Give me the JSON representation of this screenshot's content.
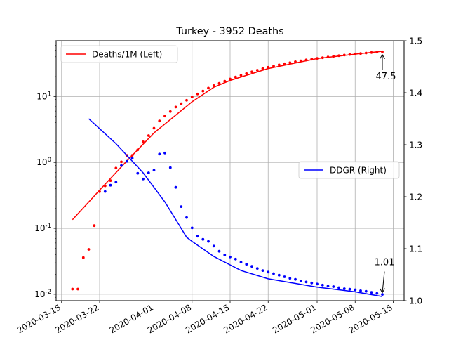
{
  "chart_data": {
    "type": "line",
    "title": "Turkey - 3952 Deaths",
    "x_dates": [
      "2020-03-15",
      "2020-03-22",
      "2020-04-01",
      "2020-04-08",
      "2020-04-15",
      "2020-04-22",
      "2020-05-01",
      "2020-05-08",
      "2020-05-15"
    ],
    "x_tick_labels": [
      "2020-03-15",
      "2020-03-22",
      "2020-04-01",
      "2020-04-08",
      "2020-04-15",
      "2020-04-22",
      "2020-05-01",
      "2020-05-08",
      "2020-05-15"
    ],
    "xlim": [
      "2020-03-14",
      "2020-05-17"
    ],
    "left_axis": {
      "scale": "log",
      "ylim": [
        0.008,
        70
      ],
      "tick_labels": [
        "10^-2",
        "10^-1",
        "10^0",
        "10^1"
      ],
      "tick_values": [
        0.01,
        0.1,
        1,
        10
      ]
    },
    "right_axis": {
      "scale": "linear",
      "ylim": [
        1.0,
        1.5
      ],
      "tick_labels": [
        "1.0",
        "1.1",
        "1.2",
        "1.3",
        "1.4",
        "1.5"
      ],
      "tick_values": [
        1.0,
        1.1,
        1.2,
        1.3,
        1.4,
        1.5
      ]
    },
    "grid": true,
    "legends": [
      {
        "label": "Deaths/1M (Left)",
        "color": "#ff0000",
        "placement": "upper-left"
      },
      {
        "label": "DDGR (Right)",
        "color": "#0000ff",
        "placement": "center-right"
      }
    ],
    "annotations": [
      {
        "text": "47.5",
        "target_series": "deaths",
        "x": "2020-05-13",
        "y": 47.5
      },
      {
        "text": "1.01",
        "target_series": "ddgr",
        "x": "2020-05-13",
        "y": 1.01
      }
    ],
    "series": [
      {
        "name": "Deaths/1M (Left)",
        "axis": "left",
        "color": "#ff0000",
        "kind": "points",
        "x": [
          "2020-03-17",
          "2020-03-18",
          "2020-03-19",
          "2020-03-20",
          "2020-03-21",
          "2020-03-22",
          "2020-03-23",
          "2020-03-24",
          "2020-03-25",
          "2020-03-26",
          "2020-03-27",
          "2020-03-28",
          "2020-03-29",
          "2020-03-30",
          "2020-03-31",
          "2020-04-01",
          "2020-04-02",
          "2020-04-03",
          "2020-04-04",
          "2020-04-05",
          "2020-04-06",
          "2020-04-07",
          "2020-04-08",
          "2020-04-09",
          "2020-04-10",
          "2020-04-11",
          "2020-04-12",
          "2020-04-13",
          "2020-04-14",
          "2020-04-15",
          "2020-04-16",
          "2020-04-17",
          "2020-04-18",
          "2020-04-19",
          "2020-04-20",
          "2020-04-21",
          "2020-04-22",
          "2020-04-23",
          "2020-04-24",
          "2020-04-25",
          "2020-04-26",
          "2020-04-27",
          "2020-04-28",
          "2020-04-29",
          "2020-04-30",
          "2020-05-01",
          "2020-05-02",
          "2020-05-03",
          "2020-05-04",
          "2020-05-05",
          "2020-05-06",
          "2020-05-07",
          "2020-05-08",
          "2020-05-09",
          "2020-05-10",
          "2020-05-11",
          "2020-05-12",
          "2020-05-13"
        ],
        "y": [
          0.012,
          0.012,
          0.036,
          0.048,
          0.11,
          0.36,
          0.44,
          0.53,
          0.82,
          1.02,
          1.28,
          1.28,
          1.55,
          2.05,
          2.55,
          3.3,
          4.25,
          5.05,
          5.9,
          6.9,
          7.75,
          8.75,
          9.8,
          10.9,
          12.1,
          13.4,
          14.6,
          15.8,
          17.0,
          18.4,
          19.7,
          20.9,
          22.2,
          23.6,
          25.0,
          26.4,
          27.7,
          28.9,
          30.1,
          31.3,
          32.5,
          33.6,
          34.7,
          35.8,
          36.8,
          37.8,
          38.7,
          39.7,
          40.6,
          41.5,
          42.4,
          43.3,
          44.1,
          44.8,
          45.6,
          46.3,
          47.0,
          47.5
        ]
      },
      {
        "name": "Deaths/1M fit",
        "axis": "left",
        "color": "#ff0000",
        "kind": "line",
        "x": [
          "2020-03-17",
          "2020-03-22",
          "2020-03-27",
          "2020-04-01",
          "2020-04-08",
          "2020-04-12",
          "2020-04-15",
          "2020-04-22",
          "2020-05-01",
          "2020-05-08",
          "2020-05-13"
        ],
        "y": [
          0.135,
          0.38,
          1.05,
          2.8,
          8.3,
          13.8,
          17.5,
          26.5,
          37.5,
          43.8,
          48.5
        ]
      },
      {
        "name": "DDGR (Right)",
        "axis": "right",
        "color": "#0000ff",
        "kind": "line",
        "x": [
          "2020-03-20",
          "2020-03-25",
          "2020-03-30",
          "2020-04-03",
          "2020-04-07",
          "2020-04-08",
          "2020-04-12",
          "2020-04-17",
          "2020-04-22",
          "2020-05-01",
          "2020-05-08",
          "2020-05-13"
        ],
        "y": [
          1.35,
          1.302,
          1.246,
          1.19,
          1.122,
          1.114,
          1.085,
          1.058,
          1.042,
          1.026,
          1.017,
          1.008
        ]
      },
      {
        "name": "DDGR points",
        "axis": "right",
        "color": "#0000ff",
        "kind": "points",
        "x": [
          "2020-03-23",
          "2020-03-24",
          "2020-03-25",
          "2020-03-26",
          "2020-03-27",
          "2020-03-28",
          "2020-03-29",
          "2020-03-30",
          "2020-03-31",
          "2020-04-01",
          "2020-04-02",
          "2020-04-03",
          "2020-04-04",
          "2020-04-05",
          "2020-04-06",
          "2020-04-07",
          "2020-04-08",
          "2020-04-09",
          "2020-04-10",
          "2020-04-11",
          "2020-04-12",
          "2020-04-13",
          "2020-04-14",
          "2020-04-15",
          "2020-04-16",
          "2020-04-17",
          "2020-04-18",
          "2020-04-19",
          "2020-04-20",
          "2020-04-21",
          "2020-04-22",
          "2020-04-23",
          "2020-04-24",
          "2020-04-25",
          "2020-04-26",
          "2020-04-27",
          "2020-04-28",
          "2020-04-29",
          "2020-04-30",
          "2020-05-01",
          "2020-05-02",
          "2020-05-03",
          "2020-05-04",
          "2020-05-05",
          "2020-05-06",
          "2020-05-07",
          "2020-05-08",
          "2020-05-09",
          "2020-05-10",
          "2020-05-11",
          "2020-05-12",
          "2020-05-13"
        ],
        "y": [
          1.21,
          1.222,
          1.228,
          1.26,
          1.268,
          1.274,
          1.245,
          1.234,
          1.246,
          1.251,
          1.282,
          1.284,
          1.256,
          1.218,
          1.181,
          1.16,
          1.14,
          1.124,
          1.118,
          1.114,
          1.105,
          1.095,
          1.088,
          1.084,
          1.08,
          1.074,
          1.07,
          1.066,
          1.062,
          1.058,
          1.055,
          1.052,
          1.049,
          1.046,
          1.043,
          1.041,
          1.038,
          1.036,
          1.034,
          1.032,
          1.03,
          1.028,
          1.027,
          1.025,
          1.023,
          1.022,
          1.021,
          1.019,
          1.018,
          1.016,
          1.014,
          1.012
        ]
      }
    ]
  }
}
